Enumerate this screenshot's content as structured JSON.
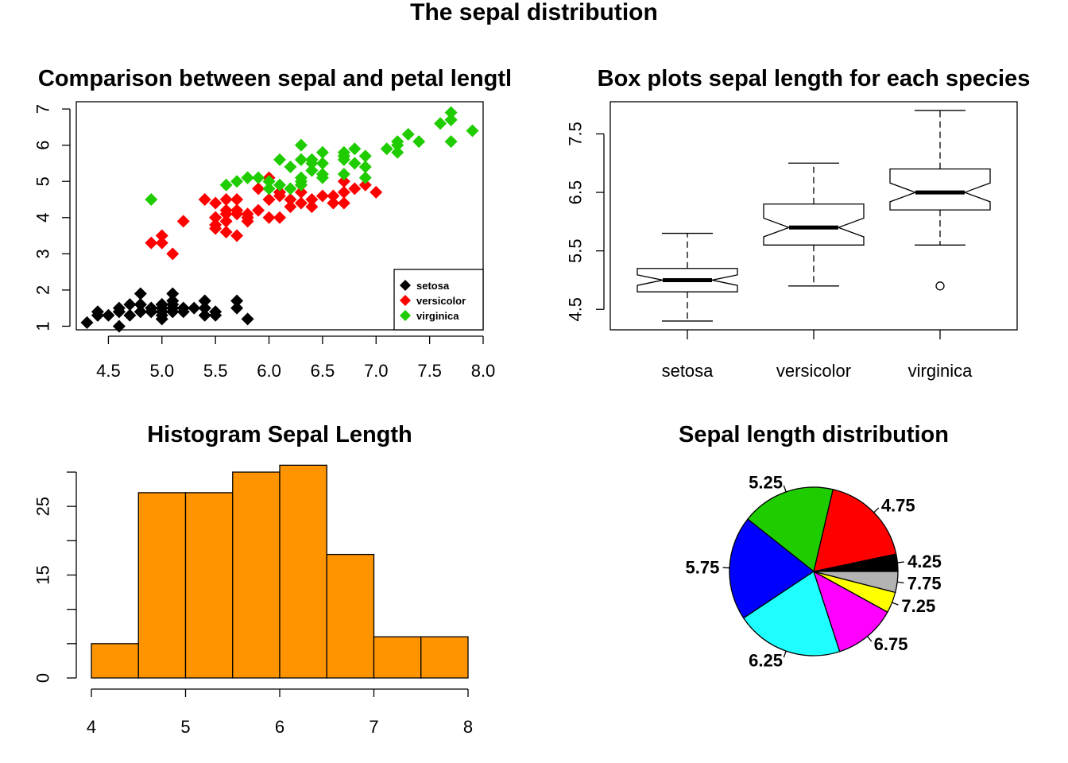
{
  "figure": {
    "title": "The sepal distribution"
  },
  "colors": {
    "setosa": "#000000",
    "versicolor": "#ff0000",
    "virginica": "#1fcc00",
    "histogram": "#ff9400"
  },
  "chart_data": [
    {
      "type": "scatter",
      "title": "Comparison between sepal and petal lengtl",
      "xlabel": "",
      "ylabel": "",
      "xlim": [
        4.2,
        8.0
      ],
      "ylim": [
        0.9,
        7.2
      ],
      "xticks": [
        "4.5",
        "5.0",
        "5.5",
        "6.0",
        "6.5",
        "7.0",
        "7.5",
        "8.0"
      ],
      "yticks": [
        "1",
        "2",
        "3",
        "4",
        "5",
        "6",
        "7"
      ],
      "marker": "diamond",
      "legend": {
        "placement": "bottom-right",
        "entries": [
          "setosa",
          "versicolor",
          "virginica"
        ]
      },
      "series": [
        {
          "name": "setosa",
          "color": "#000000",
          "points": [
            [
              5.1,
              1.4
            ],
            [
              4.9,
              1.4
            ],
            [
              4.7,
              1.3
            ],
            [
              4.6,
              1.5
            ],
            [
              5.0,
              1.4
            ],
            [
              5.4,
              1.7
            ],
            [
              4.6,
              1.4
            ],
            [
              5.0,
              1.5
            ],
            [
              4.4,
              1.4
            ],
            [
              4.9,
              1.5
            ],
            [
              5.4,
              1.5
            ],
            [
              4.8,
              1.6
            ],
            [
              4.8,
              1.4
            ],
            [
              4.3,
              1.1
            ],
            [
              5.8,
              1.2
            ],
            [
              5.7,
              1.5
            ],
            [
              5.4,
              1.3
            ],
            [
              5.1,
              1.4
            ],
            [
              5.7,
              1.7
            ],
            [
              5.1,
              1.5
            ],
            [
              5.4,
              1.7
            ],
            [
              5.1,
              1.5
            ],
            [
              4.6,
              1.0
            ],
            [
              5.1,
              1.7
            ],
            [
              4.8,
              1.9
            ],
            [
              5.0,
              1.6
            ],
            [
              5.0,
              1.6
            ],
            [
              5.2,
              1.5
            ],
            [
              5.2,
              1.4
            ],
            [
              4.7,
              1.6
            ],
            [
              4.8,
              1.6
            ],
            [
              5.4,
              1.5
            ],
            [
              5.2,
              1.5
            ],
            [
              5.5,
              1.4
            ],
            [
              4.9,
              1.5
            ],
            [
              5.0,
              1.2
            ],
            [
              5.5,
              1.3
            ],
            [
              4.9,
              1.4
            ],
            [
              4.4,
              1.3
            ],
            [
              5.1,
              1.5
            ],
            [
              5.0,
              1.3
            ],
            [
              4.5,
              1.3
            ],
            [
              4.4,
              1.3
            ],
            [
              5.0,
              1.6
            ],
            [
              5.1,
              1.9
            ],
            [
              4.8,
              1.4
            ],
            [
              5.1,
              1.6
            ],
            [
              4.6,
              1.4
            ],
            [
              5.3,
              1.5
            ],
            [
              5.0,
              1.4
            ]
          ]
        },
        {
          "name": "versicolor",
          "color": "#ff0000",
          "points": [
            [
              7.0,
              4.7
            ],
            [
              6.4,
              4.5
            ],
            [
              6.9,
              4.9
            ],
            [
              5.5,
              4.0
            ],
            [
              6.5,
              4.6
            ],
            [
              5.7,
              4.5
            ],
            [
              6.3,
              4.7
            ],
            [
              4.9,
              3.3
            ],
            [
              6.6,
              4.6
            ],
            [
              5.2,
              3.9
            ],
            [
              5.0,
              3.5
            ],
            [
              5.9,
              4.2
            ],
            [
              6.0,
              4.0
            ],
            [
              6.1,
              4.7
            ],
            [
              5.6,
              3.6
            ],
            [
              6.7,
              4.4
            ],
            [
              5.6,
              4.5
            ],
            [
              5.8,
              4.1
            ],
            [
              6.2,
              4.5
            ],
            [
              5.6,
              3.9
            ],
            [
              5.9,
              4.8
            ],
            [
              6.1,
              4.0
            ],
            [
              6.3,
              4.9
            ],
            [
              6.1,
              4.7
            ],
            [
              6.4,
              4.3
            ],
            [
              6.6,
              4.4
            ],
            [
              6.8,
              4.8
            ],
            [
              6.7,
              5.0
            ],
            [
              6.0,
              4.5
            ],
            [
              5.7,
              3.5
            ],
            [
              5.5,
              3.8
            ],
            [
              5.5,
              3.7
            ],
            [
              5.8,
              3.9
            ],
            [
              6.0,
              5.1
            ],
            [
              5.4,
              4.5
            ],
            [
              6.0,
              4.5
            ],
            [
              6.7,
              4.7
            ],
            [
              6.3,
              4.4
            ],
            [
              5.6,
              4.1
            ],
            [
              5.5,
              4.0
            ],
            [
              5.5,
              4.4
            ],
            [
              6.1,
              4.6
            ],
            [
              5.8,
              4.0
            ],
            [
              5.0,
              3.3
            ],
            [
              5.6,
              4.2
            ],
            [
              5.7,
              4.2
            ],
            [
              5.7,
              4.2
            ],
            [
              6.2,
              4.3
            ],
            [
              5.1,
              3.0
            ],
            [
              5.7,
              4.1
            ]
          ]
        },
        {
          "name": "virginica",
          "color": "#1fcc00",
          "points": [
            [
              6.3,
              6.0
            ],
            [
              5.8,
              5.1
            ],
            [
              7.1,
              5.9
            ],
            [
              6.3,
              5.6
            ],
            [
              6.5,
              5.8
            ],
            [
              7.6,
              6.6
            ],
            [
              4.9,
              4.5
            ],
            [
              7.3,
              6.3
            ],
            [
              6.7,
              5.8
            ],
            [
              7.2,
              6.1
            ],
            [
              6.5,
              5.1
            ],
            [
              6.4,
              5.3
            ],
            [
              6.8,
              5.5
            ],
            [
              5.7,
              5.0
            ],
            [
              5.8,
              5.1
            ],
            [
              6.4,
              5.3
            ],
            [
              6.5,
              5.5
            ],
            [
              7.7,
              6.7
            ],
            [
              7.7,
              6.9
            ],
            [
              6.0,
              5.0
            ],
            [
              6.9,
              5.7
            ],
            [
              5.6,
              4.9
            ],
            [
              7.7,
              6.7
            ],
            [
              6.3,
              4.9
            ],
            [
              6.7,
              5.7
            ],
            [
              7.2,
              6.0
            ],
            [
              6.2,
              4.8
            ],
            [
              6.1,
              4.9
            ],
            [
              6.4,
              5.6
            ],
            [
              7.2,
              5.8
            ],
            [
              7.4,
              6.1
            ],
            [
              7.9,
              6.4
            ],
            [
              6.4,
              5.6
            ],
            [
              6.3,
              5.1
            ],
            [
              6.1,
              5.6
            ],
            [
              7.7,
              6.1
            ],
            [
              6.3,
              5.6
            ],
            [
              6.4,
              5.5
            ],
            [
              6.0,
              4.8
            ],
            [
              6.9,
              5.4
            ],
            [
              6.7,
              5.6
            ],
            [
              6.9,
              5.1
            ],
            [
              5.8,
              5.1
            ],
            [
              6.8,
              5.9
            ],
            [
              6.7,
              5.7
            ],
            [
              6.7,
              5.2
            ],
            [
              6.3,
              5.0
            ],
            [
              6.5,
              5.2
            ],
            [
              6.2,
              5.4
            ],
            [
              5.9,
              5.1
            ]
          ]
        }
      ]
    },
    {
      "type": "box",
      "title": "Box plots sepal length for each species",
      "xlabel": "",
      "ylabel": "",
      "ylim": [
        4.15,
        8.05
      ],
      "yticks": [
        4.5,
        5.5,
        6.5,
        7.5
      ],
      "ytick_labels": [
        "4.5",
        "5.5",
        "6.5",
        "7.5"
      ],
      "notched": true,
      "categories": [
        "setosa",
        "versicolor",
        "virginica"
      ],
      "boxes": [
        {
          "name": "setosa",
          "min": 4.3,
          "q1": 4.8,
          "median": 5.0,
          "q3": 5.2,
          "max": 5.8,
          "notch": [
            4.91,
            5.09
          ],
          "outliers": []
        },
        {
          "name": "versicolor",
          "min": 4.9,
          "q1": 5.6,
          "median": 5.9,
          "q3": 6.3,
          "max": 7.0,
          "notch": [
            5.74,
            6.06
          ],
          "outliers": []
        },
        {
          "name": "virginica",
          "min": 5.6,
          "q1": 6.2,
          "median": 6.5,
          "q3": 6.9,
          "max": 7.9,
          "notch": [
            6.34,
            6.66
          ],
          "outliers": [
            4.9
          ]
        }
      ]
    },
    {
      "type": "bar",
      "subtype": "histogram",
      "title": "Histogram Sepal Length",
      "xlabel": "",
      "ylabel": "",
      "xlim": [
        4,
        8
      ],
      "ylim": [
        0,
        30
      ],
      "xticks": [
        "4",
        "5",
        "6",
        "7",
        "8"
      ],
      "yticks": [
        0,
        5,
        10,
        15,
        20,
        25,
        30
      ],
      "ytick_labels": [
        "0",
        "",
        "",
        "15",
        "",
        "25",
        ""
      ],
      "color": "#ff9400",
      "bins": [
        {
          "from": 4.0,
          "to": 4.5,
          "count": 5
        },
        {
          "from": 4.5,
          "to": 5.0,
          "count": 27
        },
        {
          "from": 5.0,
          "to": 5.5,
          "count": 27
        },
        {
          "from": 5.5,
          "to": 6.0,
          "count": 30
        },
        {
          "from": 6.0,
          "to": 6.5,
          "count": 31
        },
        {
          "from": 6.5,
          "to": 7.0,
          "count": 18
        },
        {
          "from": 7.0,
          "to": 7.5,
          "count": 6
        },
        {
          "from": 7.5,
          "to": 8.0,
          "count": 6
        }
      ]
    },
    {
      "type": "pie",
      "title": "Sepal length distribution",
      "slices": [
        {
          "label": "4.25",
          "value": 5,
          "color": "#000000"
        },
        {
          "label": "4.75",
          "value": 27,
          "color": "#ff0000"
        },
        {
          "label": "5.25",
          "value": 27,
          "color": "#1fcc00"
        },
        {
          "label": "5.75",
          "value": 30,
          "color": "#0000ff"
        },
        {
          "label": "6.25",
          "value": 31,
          "color": "#1fffff"
        },
        {
          "label": "6.75",
          "value": 18,
          "color": "#ff00ff"
        },
        {
          "label": "7.25",
          "value": 6,
          "color": "#ffff00"
        },
        {
          "label": "7.75",
          "value": 6,
          "color": "#b3b3b3"
        }
      ]
    }
  ]
}
